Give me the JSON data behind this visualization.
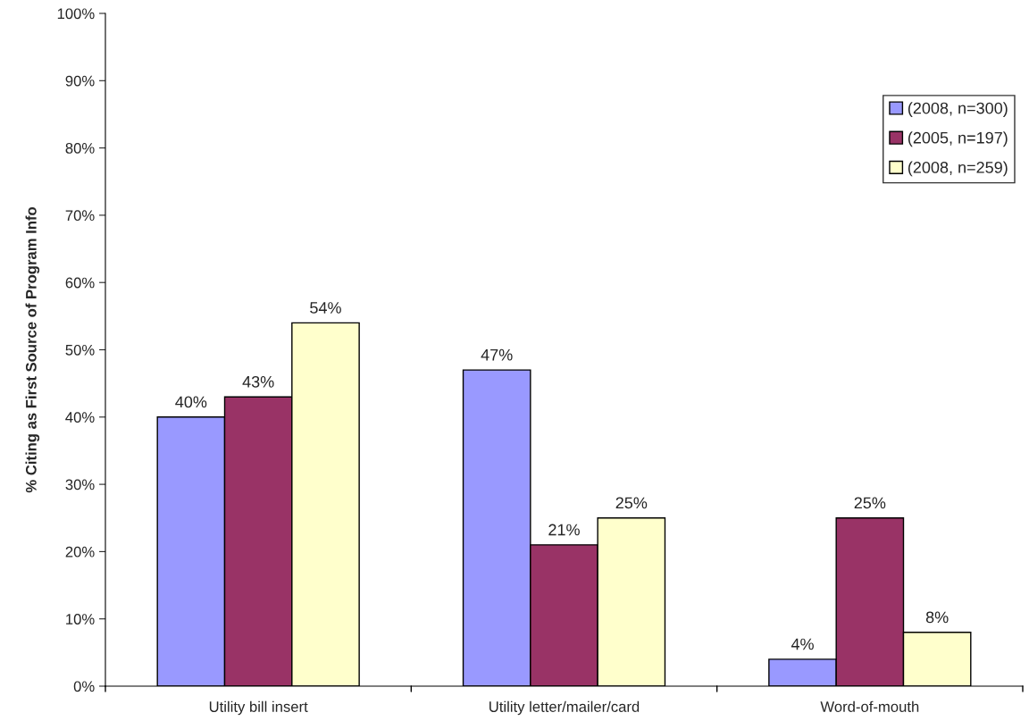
{
  "chart_data": {
    "type": "bar",
    "ylabel": "% Citing as First Source of Program Info",
    "categories": [
      "Utility bill insert",
      "Utility letter/mailer/card",
      "Word-of-mouth"
    ],
    "series": [
      {
        "name": "(2008, n=300)",
        "color": "#9999ff",
        "values": [
          40,
          47,
          4
        ]
      },
      {
        "name": "(2005, n=197)",
        "color": "#993366",
        "values": [
          43,
          21,
          25
        ]
      },
      {
        "name": "(2008, n=259)",
        "color": "#ffffcc",
        "values": [
          54,
          25,
          8
        ]
      }
    ],
    "ylim": [
      0,
      100
    ],
    "yticks": [
      {
        "value": 0,
        "label": "0%"
      },
      {
        "value": 10,
        "label": "10%"
      },
      {
        "value": 20,
        "label": "20%"
      },
      {
        "value": 30,
        "label": "30%"
      },
      {
        "value": 40,
        "label": "40%"
      },
      {
        "value": 50,
        "label": "50%"
      },
      {
        "value": 60,
        "label": "60%"
      },
      {
        "value": 70,
        "label": "70%"
      },
      {
        "value": 80,
        "label": "80%"
      },
      {
        "value": 90,
        "label": "90%"
      },
      {
        "value": 100,
        "label": "100%"
      }
    ],
    "value_labels": [
      [
        "40%",
        "47%",
        "4%"
      ],
      [
        "43%",
        "21%",
        "25%"
      ],
      [
        "54%",
        "25%",
        "8%"
      ]
    ],
    "grid": false,
    "legend": "top right"
  }
}
